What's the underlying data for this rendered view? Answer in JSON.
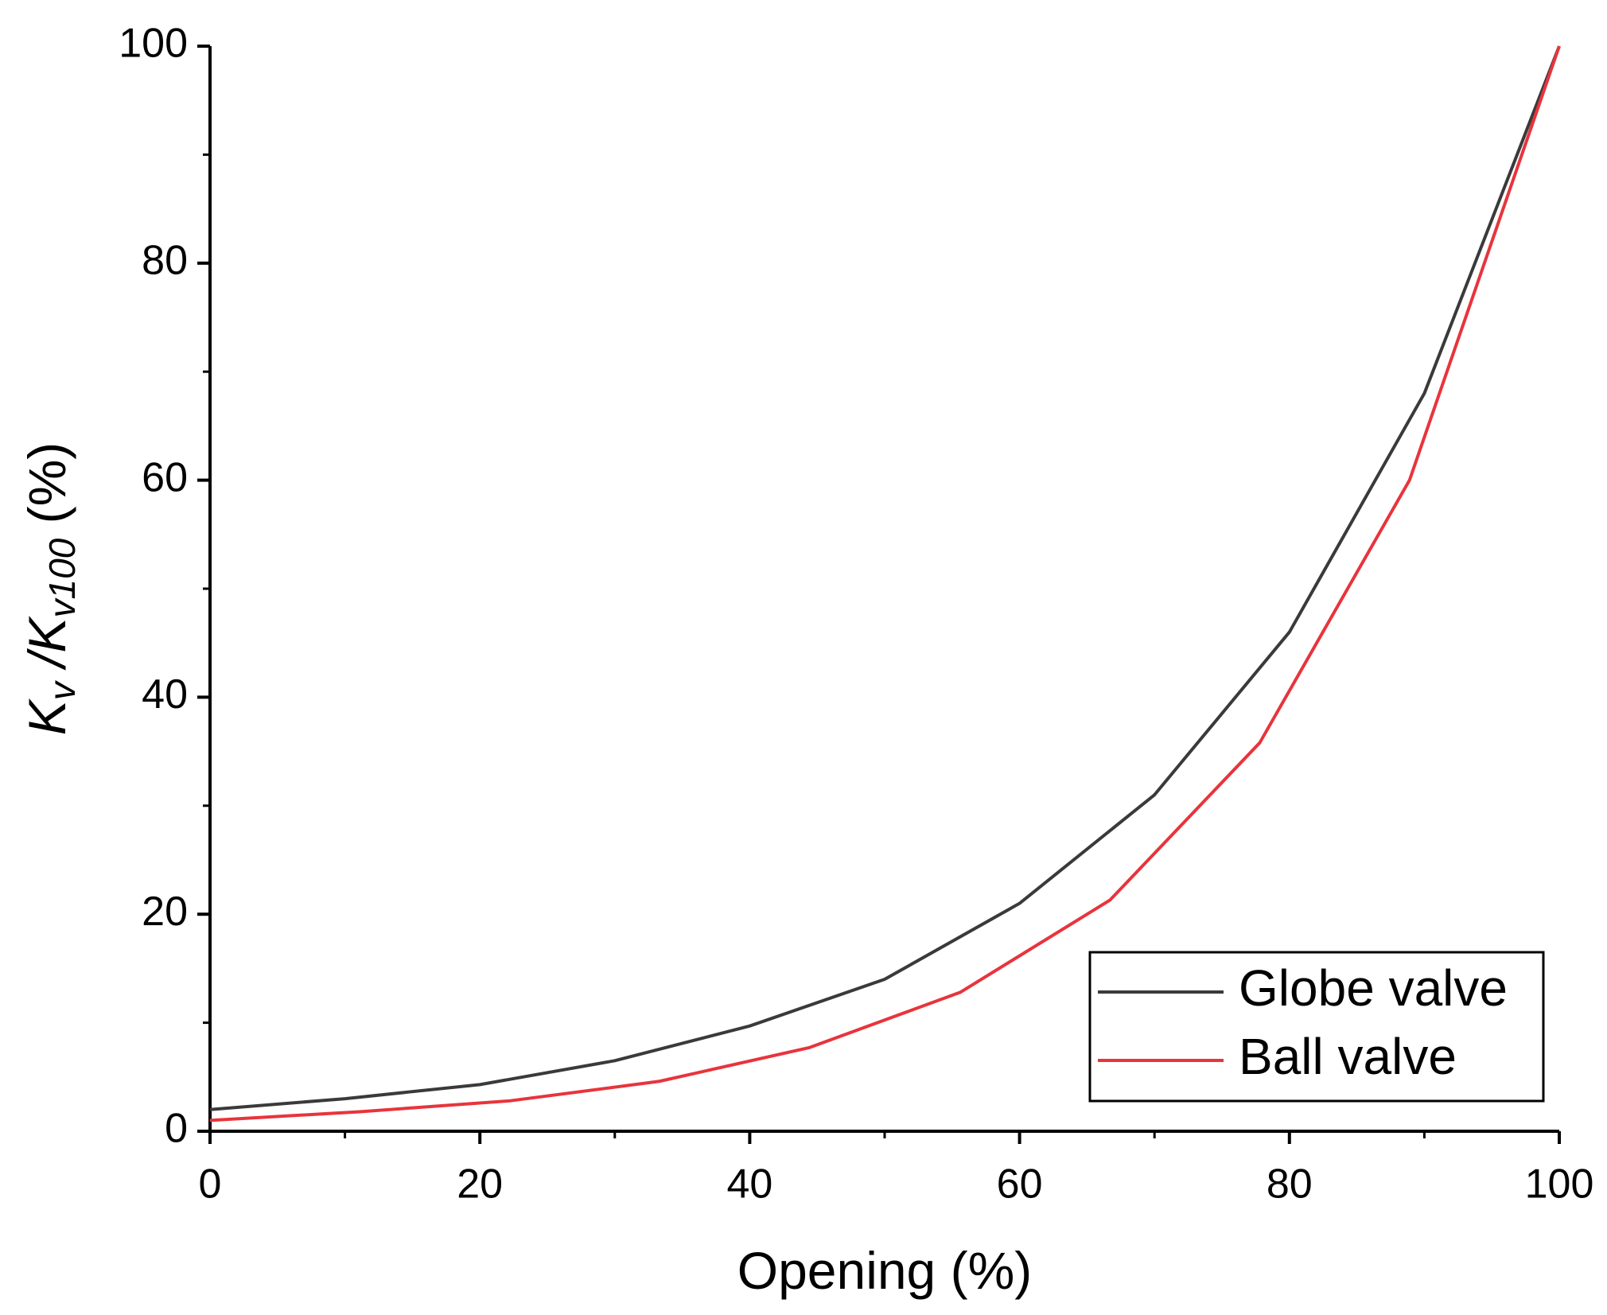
{
  "chart_data": {
    "type": "line",
    "xlabel": "Opening (%)",
    "ylabel": [
      "K",
      "v",
      " /K",
      "v100",
      " (%)"
    ],
    "xlim": [
      0,
      100
    ],
    "xticks": [
      0,
      20,
      40,
      60,
      80,
      100
    ],
    "ylim": [
      0,
      100
    ],
    "yticks": [
      0,
      20,
      40,
      60,
      80,
      100
    ],
    "legend": "lower right",
    "series": [
      {
        "name": "Globe valve",
        "color": "#3a3a3a",
        "x": [
          0,
          10,
          20,
          30,
          40,
          50,
          60,
          70,
          80,
          90,
          100
        ],
        "values": [
          2,
          3,
          4.3,
          6.5,
          9.7,
          14,
          21,
          31,
          46,
          68,
          100
        ]
      },
      {
        "name": "Ball valve",
        "color": "#e8343c",
        "x": [
          0,
          11.1,
          22.2,
          33.3,
          44.4,
          55.6,
          66.7,
          77.8,
          88.9,
          100
        ],
        "values": [
          1,
          1.8,
          2.8,
          4.6,
          7.7,
          12.8,
          21.3,
          35.8,
          60,
          100
        ]
      }
    ]
  }
}
